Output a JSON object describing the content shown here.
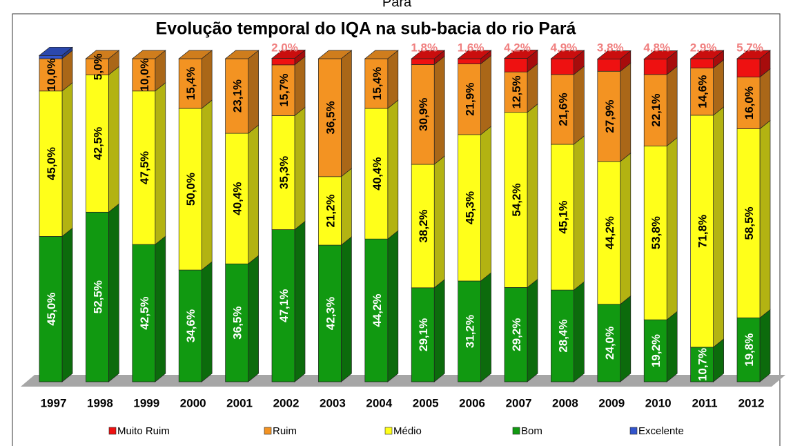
{
  "chart_data": {
    "type": "stacked-bar-3d",
    "top_text": "Pará",
    "title": "Evolução temporal  do IQA na sub-bacia do rio Pará",
    "categories": [
      "1997",
      "1998",
      "1999",
      "2000",
      "2001",
      "2002",
      "2003",
      "2004",
      "2005",
      "2006",
      "2007",
      "2008",
      "2009",
      "2010",
      "2011",
      "2012"
    ],
    "ylim": [
      0,
      100
    ],
    "legend": "bottom",
    "series": [
      {
        "name": "Muito Ruim",
        "color": "#ee1111",
        "values": [
          null,
          null,
          null,
          null,
          null,
          2.0,
          null,
          null,
          1.8,
          1.6,
          4.2,
          4.9,
          3.8,
          4.8,
          2.9,
          5.7
        ],
        "value_labels": [
          null,
          null,
          null,
          null,
          null,
          "2,0%",
          null,
          null,
          "1,8%",
          "1,6%",
          "4,2%",
          "4,9%",
          "3,8%",
          "4,8%",
          "2,9%",
          "5,7%"
        ]
      },
      {
        "name": "Ruim",
        "color": "#f39322",
        "values": [
          10.0,
          5.0,
          10.0,
          15.4,
          23.1,
          15.7,
          36.5,
          15.4,
          30.9,
          21.9,
          12.5,
          21.6,
          27.9,
          22.1,
          14.6,
          16.0
        ],
        "value_labels": [
          "10,0%",
          "5,0%",
          "10,0%",
          "15,4%",
          "23,1%",
          "15,7%",
          "36,5%",
          "15,4%",
          "30,9%",
          "21,9%",
          "12,5%",
          "21,6%",
          "27,9%",
          "22,1%",
          "14,6%",
          "16,0%"
        ]
      },
      {
        "name": "Médio",
        "color": "#ffff1a",
        "values": [
          45.0,
          42.5,
          47.5,
          50.0,
          40.4,
          35.3,
          21.2,
          40.4,
          38.2,
          45.3,
          54.2,
          45.1,
          44.2,
          53.8,
          71.8,
          58.5
        ],
        "value_labels": [
          "45,0%",
          "42,5%",
          "47,5%",
          "50,0%",
          "40,4%",
          "35,3%",
          "21,2%",
          "40,4%",
          "38,2%",
          "45,3%",
          "54,2%",
          "45,1%",
          "44,2%",
          "53,8%",
          "71,8%",
          "58,5%"
        ]
      },
      {
        "name": "Bom",
        "color": "#119911",
        "values": [
          45.0,
          52.5,
          42.5,
          34.6,
          36.5,
          47.1,
          42.3,
          44.2,
          29.1,
          31.2,
          29.2,
          28.4,
          24.0,
          19.2,
          10.7,
          19.8
        ],
        "value_labels": [
          "45,0%",
          "52,5%",
          "42,5%",
          "34,6%",
          "36,5%",
          "47,1%",
          "42,3%",
          "44,2%",
          "29,1%",
          "31,2%",
          "29,2%",
          "28,4%",
          "24,0%",
          "19,2%",
          "10,7%",
          "19,8%"
        ]
      },
      {
        "name": "Excelente",
        "color": "#3355cc",
        "values": [
          1,
          null,
          null,
          null,
          null,
          null,
          null,
          null,
          null,
          null,
          null,
          null,
          null,
          null,
          null,
          null
        ],
        "value_labels": [
          null,
          null,
          null,
          null,
          null,
          null,
          null,
          null,
          null,
          null,
          null,
          null,
          null,
          null,
          null,
          null
        ]
      }
    ]
  }
}
